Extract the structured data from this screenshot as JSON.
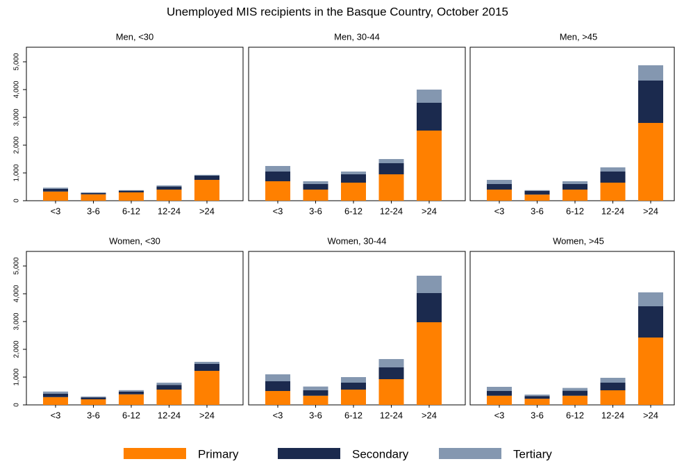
{
  "chart_data": {
    "type": "bar",
    "stacked": true,
    "title": "Unemployed MIS recipients in the Basque Country, October 2015",
    "categories": [
      "<3",
      "3-6",
      "6-12",
      "12-24",
      ">24"
    ],
    "series": [
      {
        "name": "Primary",
        "color": "#ff8000"
      },
      {
        "name": "Secondary",
        "color": "#1b2a4e"
      },
      {
        "name": "Tertiary",
        "color": "#8497b0"
      }
    ],
    "ylim": [
      0,
      5525
    ],
    "yticks": [
      0,
      {
        "value": 1000,
        "label": "1,000"
      },
      {
        "value": 2000,
        "label": "2,000"
      },
      {
        "value": 3000,
        "label": "3,000"
      },
      {
        "value": 4000,
        "label": "4,000"
      },
      {
        "value": 5000,
        "label": "5,000"
      }
    ],
    "panels": [
      {
        "title": "Men, <30",
        "values": [
          [
            330,
            230,
            300,
            400,
            750
          ],
          [
            100,
            50,
            60,
            110,
            150
          ],
          [
            40,
            20,
            20,
            40,
            30
          ]
        ]
      },
      {
        "title": "Men, 30-44",
        "values": [
          [
            700,
            400,
            650,
            950,
            2525
          ],
          [
            350,
            200,
            300,
            400,
            1000
          ],
          [
            200,
            100,
            100,
            150,
            475
          ]
        ]
      },
      {
        "title": "Men, >45",
        "values": [
          [
            400,
            220,
            400,
            650,
            2800
          ],
          [
            200,
            130,
            200,
            400,
            1525
          ],
          [
            150,
            30,
            100,
            150,
            550
          ]
        ]
      },
      {
        "title": "Women, <30",
        "values": [
          [
            280,
            200,
            380,
            550,
            1225
          ],
          [
            120,
            70,
            100,
            170,
            250
          ],
          [
            80,
            30,
            50,
            80,
            75
          ]
        ]
      },
      {
        "title": "Women, 30-44",
        "values": [
          [
            500,
            330,
            550,
            925,
            2975
          ],
          [
            350,
            200,
            250,
            425,
            1050
          ],
          [
            250,
            130,
            200,
            300,
            625
          ]
        ]
      },
      {
        "title": "Women, >45",
        "values": [
          [
            330,
            220,
            330,
            525,
            2425
          ],
          [
            170,
            100,
            180,
            275,
            1125
          ],
          [
            150,
            50,
            100,
            175,
            500
          ]
        ]
      }
    ]
  }
}
